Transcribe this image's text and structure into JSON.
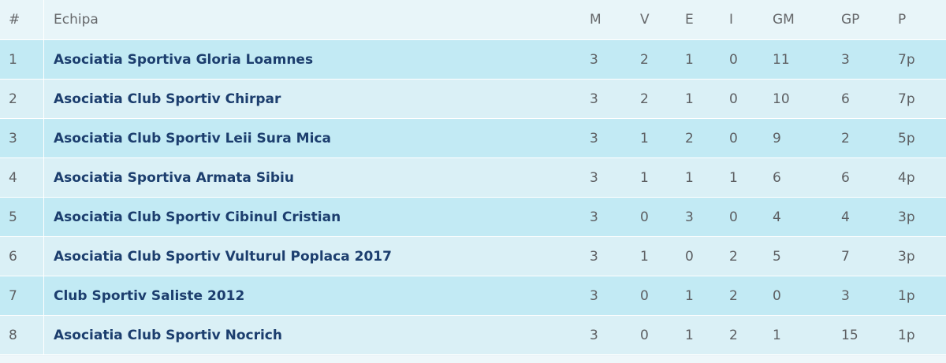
{
  "table": {
    "headers": {
      "rank": "#",
      "team": "Echipa",
      "m": "M",
      "v": "V",
      "e": "E",
      "i": "I",
      "gm": "GM",
      "gp": "GP",
      "p": "P"
    },
    "rows": [
      {
        "rank": "1",
        "team": "Asociatia Sportiva Gloria Loamnes",
        "m": "3",
        "v": "2",
        "e": "1",
        "i": "0",
        "gm": "11",
        "gp": "3",
        "p": "7p"
      },
      {
        "rank": "2",
        "team": "Asociatia Club Sportiv Chirpar",
        "m": "3",
        "v": "2",
        "e": "1",
        "i": "0",
        "gm": "10",
        "gp": "6",
        "p": "7p"
      },
      {
        "rank": "3",
        "team": "Asociatia Club Sportiv Leii Sura Mica",
        "m": "3",
        "v": "1",
        "e": "2",
        "i": "0",
        "gm": "9",
        "gp": "2",
        "p": "5p"
      },
      {
        "rank": "4",
        "team": "Asociatia Sportiva Armata Sibiu",
        "m": "3",
        "v": "1",
        "e": "1",
        "i": "1",
        "gm": "6",
        "gp": "6",
        "p": "4p"
      },
      {
        "rank": "5",
        "team": "Asociatia Club Sportiv Cibinul Cristian",
        "m": "3",
        "v": "0",
        "e": "3",
        "i": "0",
        "gm": "4",
        "gp": "4",
        "p": "3p"
      },
      {
        "rank": "6",
        "team": "Asociatia Club Sportiv Vulturul Poplaca 2017",
        "m": "3",
        "v": "1",
        "e": "0",
        "i": "2",
        "gm": "5",
        "gp": "7",
        "p": "3p"
      },
      {
        "rank": "7",
        "team": "Club Sportiv Saliste 2012",
        "m": "3",
        "v": "0",
        "e": "1",
        "i": "2",
        "gm": "0",
        "gp": "3",
        "p": "1p"
      },
      {
        "rank": "8",
        "team": "Asociatia Club Sportiv Nocrich",
        "m": "3",
        "v": "0",
        "e": "1",
        "i": "2",
        "gm": "1",
        "gp": "15",
        "p": "1p"
      }
    ]
  },
  "colors": {
    "row_odd": "#c2eaf4",
    "row_even": "#daf0f6",
    "header_bg": "#e8f5f9",
    "team_text": "#1c3e6e",
    "body_text": "#5d5f62"
  }
}
